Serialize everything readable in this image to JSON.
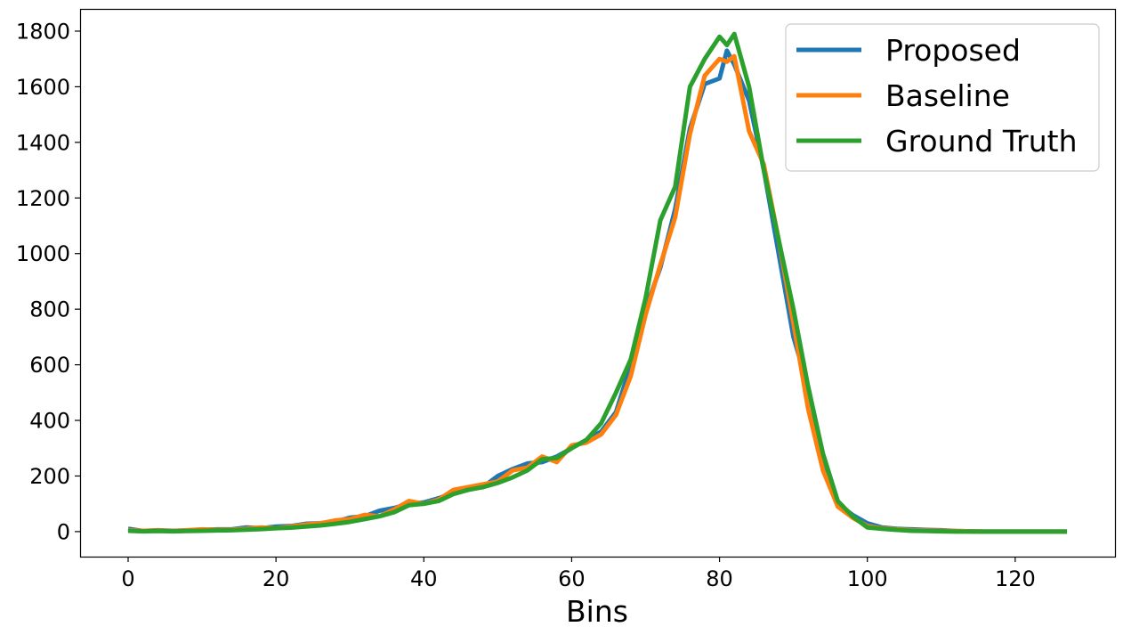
{
  "chart_data": {
    "type": "line",
    "title": "",
    "xlabel": "Bins",
    "ylabel": "",
    "xlim": [
      -6.5,
      133.5
    ],
    "ylim": [
      -90,
      1880
    ],
    "xticks": [
      0,
      20,
      40,
      60,
      80,
      100,
      120
    ],
    "yticks": [
      0,
      200,
      400,
      600,
      800,
      1000,
      1200,
      1400,
      1600,
      1800
    ],
    "grid": false,
    "legend_position": "top-right",
    "x": [
      0,
      2,
      4,
      6,
      8,
      10,
      12,
      14,
      16,
      18,
      20,
      22,
      24,
      26,
      28,
      30,
      32,
      34,
      36,
      38,
      40,
      42,
      44,
      46,
      48,
      50,
      52,
      54,
      56,
      58,
      60,
      62,
      64,
      66,
      68,
      70,
      72,
      74,
      76,
      78,
      80,
      81,
      82,
      84,
      86,
      88,
      90,
      92,
      94,
      96,
      98,
      100,
      102,
      104,
      106,
      108,
      110,
      112,
      114,
      116,
      118,
      120,
      122,
      124,
      127
    ],
    "series": [
      {
        "name": "Proposed",
        "color": "#1f77b4",
        "values": [
          10,
          2,
          5,
          3,
          4,
          6,
          8,
          8,
          15,
          12,
          18,
          20,
          28,
          30,
          35,
          50,
          55,
          75,
          85,
          100,
          105,
          120,
          140,
          155,
          160,
          200,
          225,
          245,
          250,
          270,
          300,
          330,
          360,
          430,
          600,
          800,
          950,
          1160,
          1450,
          1610,
          1630,
          1730,
          1680,
          1550,
          1300,
          1000,
          700,
          520,
          270,
          100,
          60,
          30,
          15,
          10,
          8,
          6,
          5,
          2,
          1,
          0,
          0,
          0,
          0,
          0,
          0
        ]
      },
      {
        "name": "Baseline",
        "color": "#ff7f0e",
        "values": [
          5,
          3,
          4,
          2,
          5,
          8,
          6,
          7,
          10,
          15,
          12,
          18,
          25,
          30,
          40,
          45,
          60,
          55,
          80,
          110,
          100,
          115,
          150,
          160,
          170,
          180,
          220,
          230,
          270,
          250,
          310,
          320,
          350,
          420,
          560,
          780,
          960,
          1130,
          1430,
          1640,
          1700,
          1690,
          1710,
          1440,
          1320,
          1050,
          750,
          440,
          220,
          90,
          50,
          20,
          12,
          8,
          5,
          4,
          3,
          2,
          1,
          0,
          0,
          0,
          0,
          0,
          0
        ]
      },
      {
        "name": "Ground Truth",
        "color": "#2ca02c",
        "values": [
          3,
          1,
          2,
          1,
          2,
          3,
          4,
          5,
          7,
          9,
          12,
          14,
          18,
          22,
          28,
          35,
          45,
          55,
          70,
          95,
          100,
          110,
          135,
          150,
          160,
          175,
          195,
          220,
          260,
          265,
          300,
          330,
          390,
          500,
          620,
          840,
          1120,
          1240,
          1600,
          1700,
          1780,
          1750,
          1790,
          1600,
          1300,
          1050,
          800,
          520,
          280,
          110,
          55,
          15,
          10,
          6,
          3,
          2,
          1,
          0,
          0,
          0,
          0,
          0,
          0,
          0,
          0
        ]
      }
    ]
  }
}
